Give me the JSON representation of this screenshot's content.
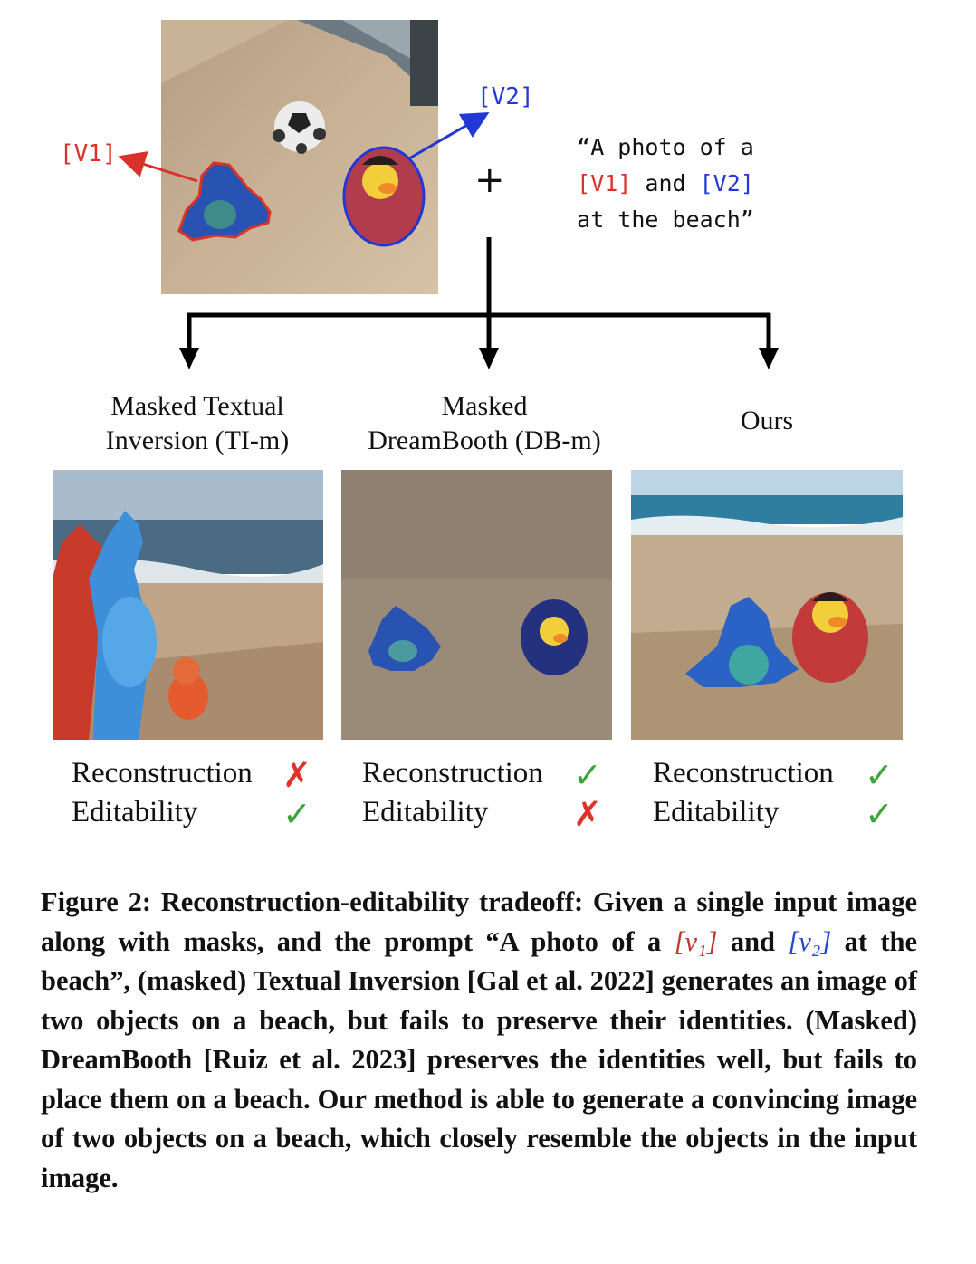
{
  "input": {
    "label_v1": "[V1]",
    "label_v2": "[V2]",
    "plus": "+",
    "prompt_line1": "“A photo of a",
    "prompt_v1": "[V1]",
    "prompt_and": " and ",
    "prompt_v2": "[V2]",
    "prompt_line3": "at the beach”"
  },
  "methods": [
    {
      "title_line1": "Masked Textual",
      "title_line2": "Inversion (TI-m)",
      "reconstruction_label": "Reconstruction",
      "editability_label": "Editability",
      "reconstruction": "✗",
      "editability": "✓"
    },
    {
      "title_line1": "Masked",
      "title_line2": "DreamBooth (DB-m)",
      "reconstruction_label": "Reconstruction",
      "editability_label": "Editability",
      "reconstruction": "✓",
      "editability": "✗"
    },
    {
      "title_line1": "Ours",
      "title_line2": "",
      "reconstruction_label": "Reconstruction",
      "editability_label": "Editability",
      "reconstruction": "✓",
      "editability": "✓"
    }
  ],
  "caption": {
    "part1": "Figure 2: Reconstruction-editability tradeoff: Given a single input image along with masks, and the prompt “A photo of a ",
    "v1": "[v₁]",
    "part2": " and ",
    "v2": "[v₂]",
    "part3": " at the beach”, (masked) Textual Inversion [Gal et al. 2022] generates an image of two objects on a beach, but fails to preserve their identities. (Masked) DreamBooth [Ruiz et al. 2023] preserves the identities well, but fails to place them on a beach. Our method is able to generate a convincing image of two objects on a beach, which closely resemble the objects in the input image."
  },
  "colors": {
    "v1": "#d8322a",
    "v2": "#2336d6",
    "check": "#3aa53a",
    "cross": "#e0322c"
  }
}
